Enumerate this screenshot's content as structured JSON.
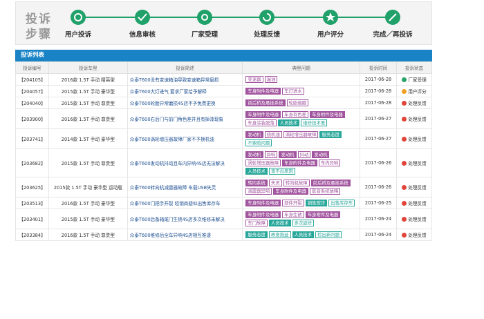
{
  "steps": {
    "title_line1": "投诉",
    "title_line2": "步骤",
    "items": [
      "用户投诉",
      "信息审核",
      "厂家受理",
      "处理反馈",
      "用户评分",
      "完成／再投诉"
    ]
  },
  "table": {
    "title": "投诉列表",
    "headers": [
      "投诉编号",
      "投诉车型",
      "投诉简述",
      "典型问题",
      "投诉时间",
      "投诉状态"
    ],
    "rows": [
      {
        "id": "【204105】",
        "model": "2016款 1.5T 手动 精英型",
        "summary": "众泰T600没有变速箱油导致变速箱异常磨损",
        "tags": [
          {
            "text": "变速器",
            "color": "#a2559f",
            "filled": false
          },
          {
            "text": "漏油",
            "color": "#a2559f",
            "filled": false
          }
        ],
        "date": "2017-06-28",
        "status": "厂家受理",
        "status_color": "#2aa36b"
      },
      {
        "id": "【204057】",
        "model": "2015款 1.5T 手动 豪华型",
        "summary": "众泰T600大灯进气 要求厂家给予解释",
        "tags": [
          {
            "text": "车身附件及电器",
            "color": "#a2559f",
            "filled": true
          },
          {
            "text": "车灯进水",
            "color": "#a2559f",
            "filled": false
          }
        ],
        "date": "2017-06-28",
        "status": "用户评分",
        "status_color": "#f0a020"
      },
      {
        "id": "【204040】",
        "model": "2015款 1.5T 手动 尊贵型",
        "summary": "众泰T600轮胎异常磨损4S店不予免费更换",
        "tags": [
          {
            "text": "前后桥及悬挂系统",
            "color": "#a2559f",
            "filled": true
          },
          {
            "text": "轮胎偏磨",
            "color": "#a2559f",
            "filled": false
          }
        ],
        "date": "2017-06-28",
        "status": "处理反馈",
        "status_color": "#e0443a"
      },
      {
        "id": "【203900】",
        "model": "2016款 1.5T 手动 尊贵型",
        "summary": "众泰T600右后门与前门角色差并且有掉漆现象",
        "tags": [
          {
            "text": "车身附件及电器",
            "color": "#a2559f",
            "filled": true
          },
          {
            "text": "车身有色差",
            "color": "#a2559f",
            "filled": false
          },
          {
            "text": "车身附件及电器",
            "color": "#a2559f",
            "filled": true
          },
          {
            "text": "车身涂装脱落",
            "color": "#a2559f",
            "filled": false
          },
          {
            "text": "人员技术",
            "color": "#2aa79b",
            "filled": true
          },
          {
            "text": "维修技术差",
            "color": "#2aa79b",
            "filled": false
          }
        ],
        "date": "2017-06-27",
        "status": "处理反馈",
        "status_color": "#e0443a"
      },
      {
        "id": "【203741】",
        "model": "2014款 1.5T 手动 豪华型",
        "summary": "众泰T600涡轮增压器故障厂家不予换机油",
        "tags": [
          {
            "text": "发动机",
            "color": "#a2559f",
            "filled": true
          },
          {
            "text": "烧机油",
            "color": "#a2559f",
            "filled": false
          },
          {
            "text": "涡轮增压器故障",
            "color": "#a2559f",
            "filled": false
          },
          {
            "text": "服务态度",
            "color": "#2aa79b",
            "filled": true
          },
          {
            "text": "不索赔问题",
            "color": "#2aa79b",
            "filled": false
          }
        ],
        "date": "2017-06-27",
        "status": "处理反馈",
        "status_color": "#e0443a"
      },
      {
        "id": "【203682】",
        "model": "2015款 1.5T 手动 尊贵型",
        "summary": "众泰T600发动机抖动且车内异响4S店无法解决",
        "tags": [
          {
            "text": "发动机",
            "color": "#a2559f",
            "filled": true
          },
          {
            "text": "异响",
            "color": "#a2559f",
            "filled": false
          },
          {
            "text": "发动机",
            "color": "#a2559f",
            "filled": true
          },
          {
            "text": "抖动",
            "color": "#a2559f",
            "filled": false
          },
          {
            "text": "发动机",
            "color": "#a2559f",
            "filled": true
          },
          {
            "text": "涡轮增压器故障",
            "color": "#a2559f",
            "filled": false
          },
          {
            "text": "车身附件及电器",
            "color": "#a2559f",
            "filled": true
          },
          {
            "text": "车内异响",
            "color": "#a2559f",
            "filled": false
          },
          {
            "text": "人员技术",
            "color": "#2aa79b",
            "filled": true
          },
          {
            "text": "查不出原因",
            "color": "#2aa79b",
            "filled": false
          }
        ],
        "date": "2017-06-26",
        "status": "处理反馈",
        "status_color": "#e0443a"
      },
      {
        "id": "【203625】",
        "model": "2015款 1.5T 手动 豪华型 运动版",
        "summary": "众泰T600转向机减震器故障 车载USB失灵",
        "tags": [
          {
            "text": "转向系统",
            "color": "#a2559f",
            "filled": true
          },
          {
            "text": "失灵",
            "color": "#a2559f",
            "filled": false
          },
          {
            "text": "转向机故障",
            "color": "#a2559f",
            "filled": false
          },
          {
            "text": "前后桥及悬挂系统",
            "color": "#a2559f",
            "filled": true
          },
          {
            "text": "减震器异响",
            "color": "#a2559f",
            "filled": false
          },
          {
            "text": "车身附件及电器",
            "color": "#a2559f",
            "filled": true
          },
          {
            "text": "影音系统故障",
            "color": "#a2559f",
            "filled": false
          }
        ],
        "date": "2017-06-26",
        "status": "处理反馈",
        "status_color": "#e0443a"
      },
      {
        "id": "【203513】",
        "model": "2016款 1.5T 手动 豪华型",
        "summary": "众泰T600门把手开裂 经销商疑似出售库存车",
        "tags": [
          {
            "text": "车身附件及电器",
            "color": "#a2559f",
            "filled": true
          },
          {
            "text": "部件开裂",
            "color": "#a2559f",
            "filled": false
          },
          {
            "text": "销售欺诈",
            "color": "#2aa79b",
            "filled": true
          },
          {
            "text": "出售库存车",
            "color": "#2aa79b",
            "filled": false
          }
        ],
        "date": "2017-06-25",
        "status": "处理反馈",
        "status_color": "#e0443a"
      },
      {
        "id": "【203401】",
        "model": "2015款 1.5T 手动 豪华型",
        "summary": "众泰T600后备箱尾门生锈4S店多次维修未解决",
        "tags": [
          {
            "text": "车身附件及电器",
            "color": "#a2559f",
            "filled": true
          },
          {
            "text": "车身生锈",
            "color": "#a2559f",
            "filled": false
          },
          {
            "text": "车身附件及电器",
            "color": "#a2559f",
            "filled": true
          },
          {
            "text": "车门故障",
            "color": "#a2559f",
            "filled": false
          },
          {
            "text": "人员技术",
            "color": "#2aa79b",
            "filled": true
          },
          {
            "text": "多次返修",
            "color": "#2aa79b",
            "filled": false
          }
        ],
        "date": "2017-06-24",
        "status": "处理反馈",
        "status_color": "#e0443a"
      },
      {
        "id": "【203384】",
        "model": "2016款 1.5T 手动 尊贵型",
        "summary": "众泰T600维修后全车异响4S店相互推诿",
        "tags": [
          {
            "text": "服务态度",
            "color": "#2aa79b",
            "filled": true
          },
          {
            "text": "故意拖延",
            "color": "#2aa79b",
            "filled": false
          },
          {
            "text": "人员技术",
            "color": "#2aa79b",
            "filled": true
          },
          {
            "text": "检出新问题",
            "color": "#2aa79b",
            "filled": false
          }
        ],
        "date": "2017-06-24",
        "status": "处理反馈",
        "status_color": "#e0443a"
      }
    ]
  }
}
